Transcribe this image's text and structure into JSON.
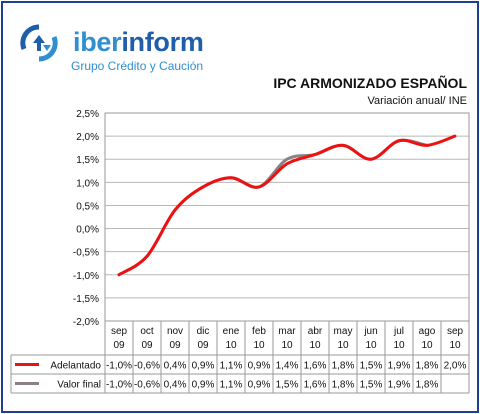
{
  "brand": {
    "name_pre": "iber",
    "name_post": "inform",
    "tagline": "Grupo Crédito y Caución",
    "icon": "circular-arrows-logo-icon",
    "color_primary": "#1f5ea8",
    "color_secondary": "#2f8fd0"
  },
  "chart_data": {
    "type": "line",
    "title": "IPC ARMONIZADO ESPAÑOL",
    "subtitle": "Variación anual/ INE",
    "categories": [
      [
        "sep",
        "09"
      ],
      [
        "oct",
        "09"
      ],
      [
        "nov",
        "09"
      ],
      [
        "dic",
        "09"
      ],
      [
        "ene",
        "10"
      ],
      [
        "feb",
        "10"
      ],
      [
        "mar",
        "10"
      ],
      [
        "abr",
        "10"
      ],
      [
        "may",
        "10"
      ],
      [
        "jun",
        "10"
      ],
      [
        "jul",
        "10"
      ],
      [
        "ago",
        "10"
      ],
      [
        "sep",
        "10"
      ]
    ],
    "series": [
      {
        "name": "Adelantado",
        "color": "#ee1111",
        "values": [
          -1.0,
          -0.6,
          0.4,
          0.9,
          1.1,
          0.9,
          1.4,
          1.6,
          1.8,
          1.5,
          1.9,
          1.8,
          2.0
        ],
        "labels": [
          "-1,0%",
          "-0,6%",
          "0,4%",
          "0,9%",
          "1,1%",
          "0,9%",
          "1,4%",
          "1,6%",
          "1,8%",
          "1,5%",
          "1,9%",
          "1,8%",
          "2,0%"
        ]
      },
      {
        "name": "Valor final",
        "color": "#8c8084",
        "values": [
          -1.0,
          -0.6,
          0.4,
          0.9,
          1.1,
          0.9,
          1.5,
          1.6,
          1.8,
          1.5,
          1.9,
          1.8,
          null
        ],
        "labels": [
          "-1,0%",
          "-0,6%",
          "0,4%",
          "0,9%",
          "1,1%",
          "0,9%",
          "1,5%",
          "1,6%",
          "1,8%",
          "1,5%",
          "1,9%",
          "1,8%",
          ""
        ]
      }
    ],
    "ylim": [
      -2.0,
      2.5
    ],
    "yticks": [
      2.5,
      2.0,
      1.5,
      1.0,
      0.5,
      0.0,
      -0.5,
      -1.0,
      -1.5,
      -2.0
    ],
    "ytick_labels": [
      "2,5%",
      "2,0%",
      "1,5%",
      "1,0%",
      "0,5%",
      "0,0%",
      "-0,5%",
      "-1,0%",
      "-1,5%",
      "-2,0%"
    ],
    "grid": true,
    "legend": "data-table-below"
  }
}
